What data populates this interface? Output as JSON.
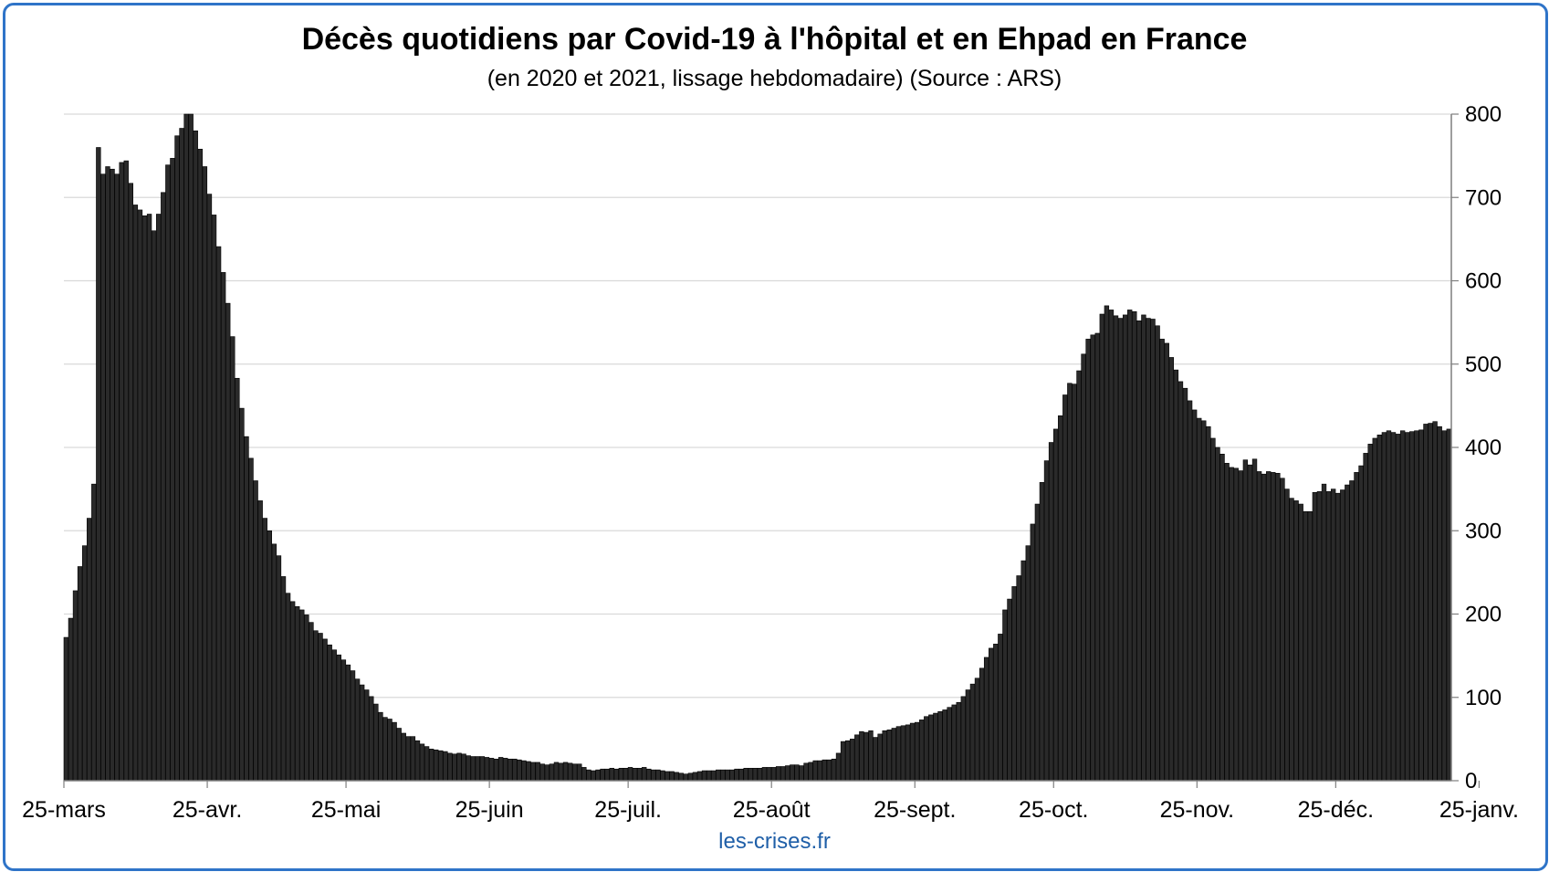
{
  "chart_data": {
    "type": "bar",
    "title": "Décès quotidiens par Covid-19 à l'hôpital et en Ehpad en France",
    "subtitle": "(en 2020 et 2021, lissage hebdomadaire) (Source : ARS)",
    "xlabel": "",
    "ylabel": "",
    "ylim": [
      0,
      800
    ],
    "y_ticks": [
      "0",
      "100",
      "200",
      "300",
      "400",
      "500",
      "600",
      "700",
      "800"
    ],
    "y_axis_side": "right",
    "grid": true,
    "x_tick_labels": [
      "25-mars",
      "25-avr.",
      "25-mai",
      "25-juin",
      "25-juil.",
      "25-août",
      "25-sept.",
      "25-oct.",
      "25-nov.",
      "25-déc.",
      "25-janv."
    ],
    "x_tick_positions": [
      0,
      31,
      61,
      92,
      122,
      153,
      184,
      214,
      245,
      275,
      306
    ],
    "values": [
      172,
      195,
      228,
      257,
      282,
      315,
      356,
      760,
      728,
      737,
      734,
      728,
      742,
      744,
      717,
      691,
      685,
      678,
      680,
      660,
      680,
      706,
      739,
      747,
      774,
      783,
      800,
      800,
      780,
      758,
      737,
      704,
      679,
      641,
      610,
      573,
      533,
      483,
      447,
      413,
      387,
      360,
      336,
      315,
      300,
      284,
      270,
      245,
      225,
      215,
      209,
      205,
      199,
      190,
      180,
      177,
      170,
      163,
      157,
      151,
      145,
      139,
      132,
      122,
      115,
      109,
      101,
      92,
      82,
      76,
      74,
      70,
      63,
      57,
      53,
      53,
      48,
      44,
      41,
      38,
      37,
      36,
      35,
      33,
      32,
      33,
      32,
      30,
      29,
      29,
      29,
      28,
      27,
      26,
      28,
      27,
      26,
      26,
      25,
      24,
      23,
      22,
      22,
      20,
      19,
      20,
      22,
      21,
      22,
      21,
      20,
      20,
      16,
      13,
      12,
      13,
      14,
      14,
      15,
      14,
      15,
      15,
      16,
      15,
      15,
      16,
      14,
      13,
      13,
      12,
      11,
      11,
      10,
      9,
      8,
      9,
      10,
      11,
      12,
      12,
      12,
      13,
      13,
      13,
      13,
      14,
      14,
      15,
      15,
      15,
      15,
      16,
      16,
      16,
      17,
      17,
      18,
      19,
      19,
      18,
      21,
      22,
      24,
      24,
      25,
      25,
      26,
      33,
      47,
      48,
      50,
      55,
      59,
      58,
      60,
      52,
      56,
      60,
      61,
      63,
      65,
      66,
      67,
      69,
      70,
      73,
      77,
      79,
      81,
      83,
      85,
      88,
      91,
      94,
      101,
      109,
      116,
      123,
      135,
      148,
      159,
      164,
      176,
      205,
      218,
      233,
      246,
      264,
      282,
      308,
      332,
      358,
      384,
      406,
      422,
      438,
      463,
      477,
      476,
      492,
      512,
      530,
      535,
      537,
      560,
      570,
      565,
      558,
      555,
      559,
      565,
      563,
      552,
      559,
      555,
      554,
      546,
      530,
      525,
      508,
      493,
      479,
      471,
      456,
      445,
      435,
      432,
      425,
      411,
      400,
      392,
      381,
      376,
      375,
      372,
      385,
      379,
      386,
      371,
      368,
      371,
      370,
      369,
      363,
      350,
      339,
      336,
      332,
      323,
      323,
      346,
      347,
      356,
      347,
      350,
      345,
      349,
      355,
      360,
      370,
      378,
      393,
      404,
      411,
      415,
      418,
      420,
      418,
      416,
      420,
      418,
      419,
      420,
      421,
      428,
      429,
      431,
      425,
      420,
      422
    ]
  },
  "watermark": "les-crises.fr",
  "colors": {
    "bar_fill": "#2a2a2a",
    "bar_stroke": "#000000",
    "gridline": "#d9d9d9",
    "frame": "#2f74c8",
    "watermark": "#1f5fa8"
  }
}
